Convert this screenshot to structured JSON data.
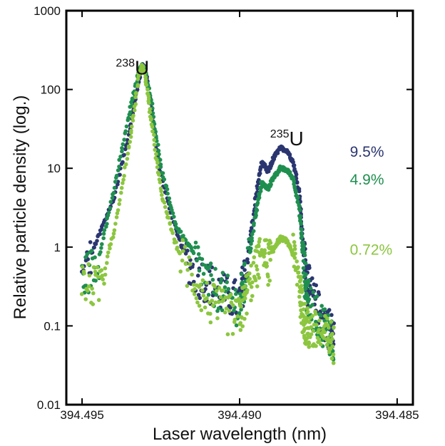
{
  "chart_data": {
    "type": "scatter",
    "xlabel": "Laser wavelength (nm)",
    "ylabel": "Relative particle density (log.)",
    "x_reversed": true,
    "xlim": [
      394.4955,
      394.4845
    ],
    "ylim": [
      0.01,
      1000
    ],
    "y_scale": "log",
    "x_ticks": [
      "394.495",
      "394.490",
      "394.485"
    ],
    "y_ticks": [
      "0.01",
      "0.1",
      "1",
      "10",
      "100",
      "1000"
    ],
    "grid": false,
    "annotations": [
      {
        "text": "U",
        "superscript": "238",
        "x": 394.4934,
        "y": 155
      },
      {
        "text": "U",
        "superscript": "235",
        "x": 394.4885,
        "y": 19.5
      }
    ],
    "series": [
      {
        "name": "9.5%",
        "color": "#2b3670",
        "label_at": [
          394.4865,
          14
        ],
        "x": [
          394.495,
          394.4945,
          394.494,
          394.4935,
          394.4932,
          394.4931,
          394.493,
          394.4928,
          394.4925,
          394.492,
          394.4915,
          394.491,
          394.4905,
          394.49,
          394.4898,
          394.4895,
          394.4893,
          394.4891,
          394.4889,
          394.4887,
          394.4885,
          394.4883,
          394.4881,
          394.488,
          394.4879,
          394.4878,
          394.4875,
          394.4872,
          394.487
        ],
        "y": [
          0.4,
          1.3,
          4,
          30,
          130,
          210,
          180,
          60,
          8,
          1.5,
          0.5,
          0.35,
          0.25,
          0.2,
          0.5,
          4,
          12,
          9,
          14,
          18,
          17,
          12,
          5,
          1.2,
          0.5,
          0.3,
          0.15,
          0.1,
          0.07
        ]
      },
      {
        "name": "4.9%",
        "color": "#1f8f4f",
        "label_at": [
          394.4865,
          6.2
        ],
        "x": [
          394.495,
          394.4945,
          394.494,
          394.4935,
          394.4932,
          394.4931,
          394.493,
          394.4928,
          394.4925,
          394.492,
          394.4915,
          394.491,
          394.4905,
          394.49,
          394.4898,
          394.4895,
          394.4893,
          394.4891,
          394.4889,
          394.4887,
          394.4885,
          394.4883,
          394.4881,
          394.488,
          394.4879,
          394.4878,
          394.4875,
          394.4872,
          394.487
        ],
        "y": [
          0.4,
          0.65,
          5,
          50,
          170,
          200,
          170,
          70,
          10,
          1.8,
          0.9,
          0.35,
          0.25,
          0.18,
          0.4,
          2.5,
          6.5,
          5.5,
          8,
          10,
          9.5,
          7.5,
          3,
          0.9,
          0.3,
          0.2,
          0.12,
          0.09,
          0.06
        ]
      },
      {
        "name": "0.72%",
        "color": "#8cc63f",
        "label_at": [
          394.4865,
          0.8
        ],
        "x": [
          394.495,
          394.4945,
          394.494,
          394.4935,
          394.4932,
          394.4931,
          394.493,
          394.4928,
          394.4925,
          394.492,
          394.4915,
          394.491,
          394.4905,
          394.49,
          394.4898,
          394.4895,
          394.4893,
          394.4891,
          394.4889,
          394.4887,
          394.4885,
          394.4883,
          394.4881,
          394.488,
          394.4879,
          394.4878,
          394.4875,
          394.4872,
          394.487
        ],
        "y": [
          0.35,
          0.3,
          1.5,
          20,
          150,
          200,
          160,
          40,
          5,
          1,
          0.4,
          0.2,
          0.15,
          0.12,
          0.25,
          0.5,
          0.9,
          0.6,
          1,
          1.3,
          1.2,
          0.8,
          0.35,
          0.15,
          0.1,
          0.09,
          0.08,
          0.07,
          0.06
        ]
      }
    ]
  }
}
